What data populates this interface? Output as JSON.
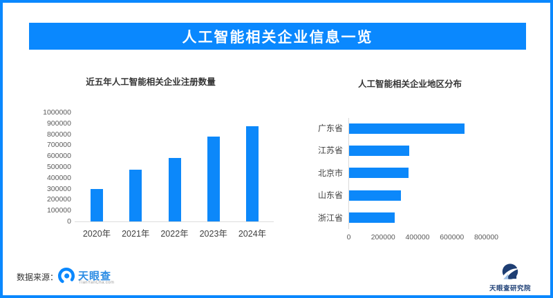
{
  "theme": {
    "accent_color": "#0a88fe",
    "bar_color": "#0c88fa"
  },
  "header": {
    "title": "人工智能相关企业信息一览"
  },
  "chart_data": [
    {
      "type": "bar",
      "title": "近五年人工智能相关企业注册数量",
      "categories": [
        "2020年",
        "2021年",
        "2022年",
        "2023年",
        "2024年"
      ],
      "values": [
        300000,
        475000,
        585000,
        780000,
        875000
      ],
      "xlabel": "",
      "ylabel": "",
      "ylim": [
        0,
        1000000
      ],
      "yticks": [
        1000000,
        900000,
        800000,
        700000,
        600000,
        500000,
        400000,
        300000,
        200000,
        100000,
        0
      ],
      "grid": false,
      "legend_position": "none",
      "bar_color": "#0c88fa"
    },
    {
      "type": "bar",
      "orientation": "horizontal",
      "title": "人工智能相关企业地区分布",
      "categories": [
        "广东省",
        "江苏省",
        "北京市",
        "山东省",
        "浙江省"
      ],
      "values": [
        670000,
        350000,
        345000,
        300000,
        265000
      ],
      "xlabel": "",
      "ylabel": "",
      "xlim": [
        0,
        800000
      ],
      "xticks": [
        0,
        200000,
        400000,
        600000,
        800000
      ],
      "grid": false,
      "legend_position": "none",
      "bar_color": "#0c88fa"
    }
  ],
  "footer": {
    "source_label": "数据来源：",
    "source_logo": {
      "name": "天眼查",
      "subtext": "TianYanCha.com"
    },
    "brand_logo": {
      "name": "天眼查研究院"
    }
  }
}
